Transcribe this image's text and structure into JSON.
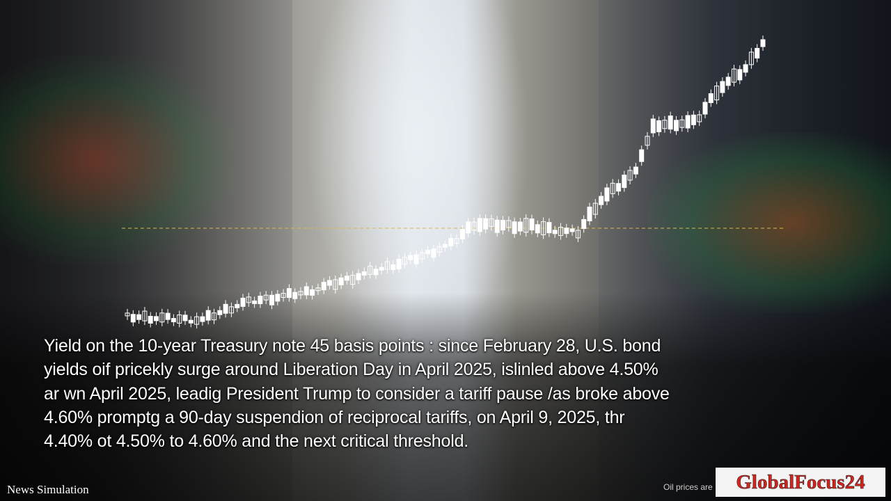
{
  "caption": {
    "lines": [
      "Yield on the 10-year Treasury note 45 basis points : since February 28, U.S. bond",
      "yields oif pricekly surge around Liberation Day in April 2025, islinled above 4.50%",
      "ar wn April 2025, leadig President Trump to consider a tariff pause /as broke above",
      "4.60% promptg a 90-day suspendion of reciprocal tariffs, on April 9, 2025, thr",
      "4.40% ot 4.50% to 4.60% and the next critical threshold."
    ]
  },
  "footer": {
    "source": "News Simulation",
    "ticker": "Oil prices are",
    "logo": "GlobalFocus24"
  }
}
